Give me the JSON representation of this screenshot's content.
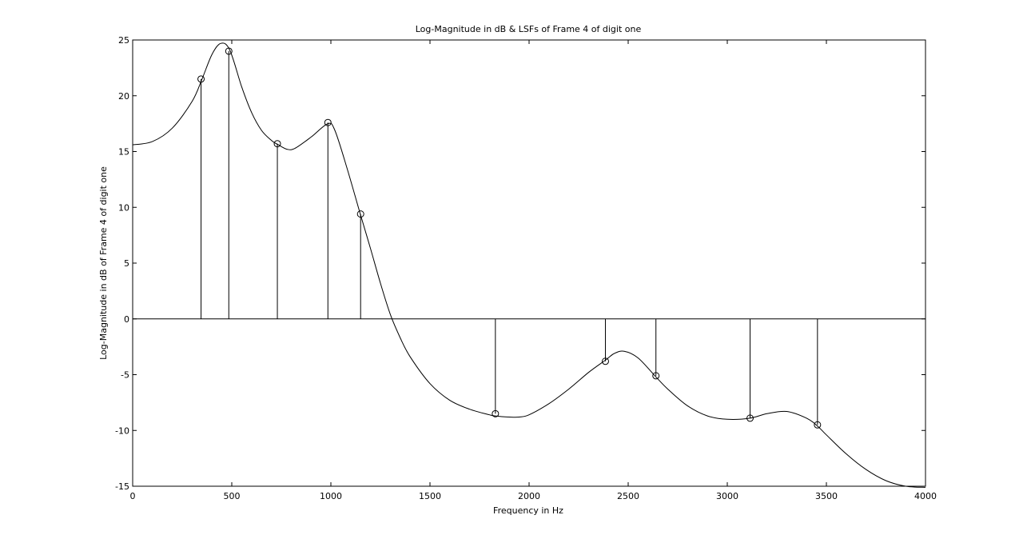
{
  "chart_data": {
    "type": "line",
    "title": "Log-Magnitude in dB & LSFs of Frame 4 of digit one",
    "xlabel": "Frequency in Hz",
    "ylabel": "Log-Magnitude in dB of Frame 4 of digit one",
    "xlim": [
      0,
      4000
    ],
    "ylim": [
      -15,
      25
    ],
    "x_ticks": [
      0,
      500,
      1000,
      1500,
      2000,
      2500,
      3000,
      3500,
      4000
    ],
    "y_ticks": [
      -15,
      -10,
      -5,
      0,
      5,
      10,
      15,
      20,
      25
    ],
    "grid": false,
    "series": [
      {
        "kind": "line",
        "x": [
          0,
          100,
          200,
          300,
          350,
          400,
          445,
          490,
          550,
          600,
          650,
          700,
          735,
          780,
          820,
          900,
          985,
          1020,
          1080,
          1150,
          1200,
          1250,
          1300,
          1350,
          1400,
          1500,
          1600,
          1700,
          1800,
          1830,
          1900,
          1950,
          2000,
          2100,
          2200,
          2300,
          2385,
          2430,
          2480,
          2550,
          2640,
          2700,
          2800,
          2900,
          3000,
          3115,
          3200,
          3300,
          3400,
          3455,
          3500,
          3600,
          3700,
          3800,
          3900,
          4000
        ],
        "y": [
          15.6,
          15.9,
          17.1,
          19.5,
          21.5,
          23.7,
          24.7,
          24.1,
          20.8,
          18.5,
          16.9,
          16.0,
          15.6,
          15.2,
          15.3,
          16.3,
          17.5,
          16.9,
          13.6,
          9.3,
          6.3,
          3.2,
          0.4,
          -1.7,
          -3.4,
          -5.8,
          -7.3,
          -8.1,
          -8.6,
          -8.7,
          -8.8,
          -8.8,
          -8.6,
          -7.6,
          -6.3,
          -4.8,
          -3.7,
          -3.1,
          -2.9,
          -3.5,
          -5.2,
          -6.3,
          -7.8,
          -8.7,
          -9.0,
          -8.9,
          -8.5,
          -8.3,
          -8.9,
          -9.6,
          -10.4,
          -12.1,
          -13.5,
          -14.5,
          -15.0,
          -15.1
        ]
      },
      {
        "kind": "stem",
        "x": [
          345,
          485,
          730,
          985,
          1150,
          1830,
          2385,
          2640,
          3115,
          3455
        ],
        "y": [
          21.5,
          24.0,
          15.7,
          17.6,
          9.4,
          -8.5,
          -3.8,
          -5.1,
          -8.9,
          -9.5
        ]
      }
    ]
  }
}
